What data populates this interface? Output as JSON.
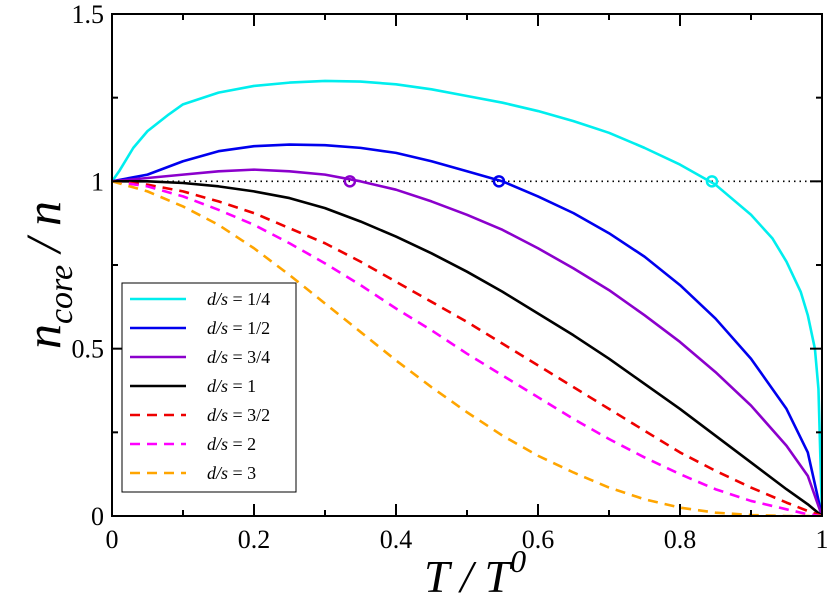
{
  "chart_data": {
    "type": "line",
    "title": "",
    "xlabel": {
      "base": "T / T",
      "sup": "0"
    },
    "ylabel": {
      "base": "n",
      "sub": "core",
      "tail": " / n"
    },
    "xlim": [
      0,
      1
    ],
    "ylim": [
      0,
      1.5
    ],
    "x_ticks": [
      0,
      0.2,
      0.4,
      0.6,
      0.8,
      1
    ],
    "x_tick_labels": [
      "0",
      "0.2",
      "0.4",
      "0.6",
      "0.8",
      "1"
    ],
    "y_ticks": [
      0,
      0.5,
      1,
      1.5
    ],
    "y_tick_labels": [
      "0",
      "0.5",
      "1",
      "1.5"
    ],
    "grid": false,
    "legend_position": "bottom-left",
    "reference_line": {
      "y": 1,
      "style": "dotted",
      "color": "#000000"
    },
    "x": [
      0,
      0.05,
      0.1,
      0.15,
      0.2,
      0.25,
      0.3,
      0.35,
      0.4,
      0.45,
      0.5,
      0.55,
      0.6,
      0.65,
      0.7,
      0.75,
      0.8,
      0.85,
      0.9,
      0.95,
      0.98,
      1.0
    ],
    "series": [
      {
        "name": "d/s = 1/4",
        "var": "d/s",
        "value": "1/4",
        "color": "#00eeee",
        "dash": "solid",
        "points": [
          [
            0,
            1.0
          ],
          [
            0.01,
            1.03
          ],
          [
            0.03,
            1.1
          ],
          [
            0.05,
            1.15
          ],
          [
            0.08,
            1.2
          ],
          [
            0.1,
            1.23
          ],
          [
            0.15,
            1.265
          ],
          [
            0.2,
            1.285
          ],
          [
            0.25,
            1.295
          ],
          [
            0.3,
            1.3
          ],
          [
            0.35,
            1.298
          ],
          [
            0.4,
            1.29
          ],
          [
            0.45,
            1.275
          ],
          [
            0.5,
            1.255
          ],
          [
            0.55,
            1.235
          ],
          [
            0.6,
            1.21
          ],
          [
            0.65,
            1.18
          ],
          [
            0.7,
            1.145
          ],
          [
            0.75,
            1.1
          ],
          [
            0.8,
            1.05
          ],
          [
            0.85,
            0.99
          ],
          [
            0.9,
            0.9
          ],
          [
            0.93,
            0.83
          ],
          [
            0.95,
            0.76
          ],
          [
            0.97,
            0.67
          ],
          [
            0.98,
            0.6
          ],
          [
            0.99,
            0.5
          ],
          [
            0.995,
            0.38
          ],
          [
            1.0,
            0.0
          ]
        ]
      },
      {
        "name": "d/s = 1/2",
        "var": "d/s",
        "value": "1/2",
        "color": "#0000ee",
        "dash": "solid",
        "points": [
          [
            0,
            1.0
          ],
          [
            0.05,
            1.02
          ],
          [
            0.1,
            1.06
          ],
          [
            0.15,
            1.09
          ],
          [
            0.2,
            1.105
          ],
          [
            0.25,
            1.11
          ],
          [
            0.3,
            1.108
          ],
          [
            0.35,
            1.1
          ],
          [
            0.4,
            1.085
          ],
          [
            0.45,
            1.06
          ],
          [
            0.5,
            1.03
          ],
          [
            0.55,
            1.0
          ],
          [
            0.6,
            0.955
          ],
          [
            0.65,
            0.905
          ],
          [
            0.7,
            0.845
          ],
          [
            0.75,
            0.775
          ],
          [
            0.8,
            0.69
          ],
          [
            0.85,
            0.59
          ],
          [
            0.9,
            0.47
          ],
          [
            0.95,
            0.32
          ],
          [
            0.98,
            0.19
          ],
          [
            1.0,
            0.0
          ]
        ]
      },
      {
        "name": "d/s = 3/4",
        "var": "d/s",
        "value": "3/4",
        "color": "#8b00cc",
        "dash": "solid",
        "points": [
          [
            0,
            1.0
          ],
          [
            0.05,
            1.01
          ],
          [
            0.1,
            1.02
          ],
          [
            0.15,
            1.03
          ],
          [
            0.2,
            1.035
          ],
          [
            0.25,
            1.03
          ],
          [
            0.3,
            1.02
          ],
          [
            0.35,
            1.0
          ],
          [
            0.4,
            0.975
          ],
          [
            0.45,
            0.94
          ],
          [
            0.5,
            0.9
          ],
          [
            0.55,
            0.855
          ],
          [
            0.6,
            0.8
          ],
          [
            0.65,
            0.74
          ],
          [
            0.7,
            0.675
          ],
          [
            0.75,
            0.6
          ],
          [
            0.8,
            0.52
          ],
          [
            0.85,
            0.43
          ],
          [
            0.9,
            0.33
          ],
          [
            0.95,
            0.21
          ],
          [
            0.98,
            0.12
          ],
          [
            1.0,
            0.0
          ]
        ]
      },
      {
        "name": "d/s = 1",
        "var": "d/s",
        "value": "1",
        "color": "#000000",
        "dash": "solid",
        "points": [
          [
            0,
            1.0
          ],
          [
            0.05,
            1.0
          ],
          [
            0.1,
            0.995
          ],
          [
            0.15,
            0.985
          ],
          [
            0.2,
            0.97
          ],
          [
            0.25,
            0.95
          ],
          [
            0.3,
            0.92
          ],
          [
            0.35,
            0.88
          ],
          [
            0.4,
            0.835
          ],
          [
            0.45,
            0.785
          ],
          [
            0.5,
            0.73
          ],
          [
            0.55,
            0.67
          ],
          [
            0.6,
            0.605
          ],
          [
            0.65,
            0.54
          ],
          [
            0.7,
            0.47
          ],
          [
            0.75,
            0.395
          ],
          [
            0.8,
            0.32
          ],
          [
            0.85,
            0.24
          ],
          [
            0.9,
            0.16
          ],
          [
            0.95,
            0.08
          ],
          [
            0.98,
            0.035
          ],
          [
            1.0,
            0.0
          ]
        ]
      },
      {
        "name": "d/s = 3/2",
        "var": "d/s",
        "value": "3/2",
        "color": "#ee0000",
        "dash": "dashed",
        "points": [
          [
            0,
            1.0
          ],
          [
            0.05,
            0.99
          ],
          [
            0.1,
            0.97
          ],
          [
            0.15,
            0.94
          ],
          [
            0.2,
            0.905
          ],
          [
            0.25,
            0.86
          ],
          [
            0.3,
            0.815
          ],
          [
            0.35,
            0.76
          ],
          [
            0.4,
            0.7
          ],
          [
            0.45,
            0.64
          ],
          [
            0.5,
            0.58
          ],
          [
            0.55,
            0.515
          ],
          [
            0.6,
            0.45
          ],
          [
            0.65,
            0.385
          ],
          [
            0.7,
            0.32
          ],
          [
            0.75,
            0.255
          ],
          [
            0.8,
            0.19
          ],
          [
            0.85,
            0.135
          ],
          [
            0.9,
            0.085
          ],
          [
            0.95,
            0.04
          ],
          [
            0.98,
            0.015
          ],
          [
            1.0,
            0.0
          ]
        ]
      },
      {
        "name": "d/s = 2",
        "var": "d/s",
        "value": "2",
        "color": "#ff00ff",
        "dash": "dashed",
        "points": [
          [
            0,
            1.0
          ],
          [
            0.05,
            0.985
          ],
          [
            0.1,
            0.955
          ],
          [
            0.15,
            0.915
          ],
          [
            0.2,
            0.87
          ],
          [
            0.25,
            0.815
          ],
          [
            0.3,
            0.755
          ],
          [
            0.35,
            0.69
          ],
          [
            0.4,
            0.62
          ],
          [
            0.45,
            0.555
          ],
          [
            0.5,
            0.485
          ],
          [
            0.55,
            0.42
          ],
          [
            0.6,
            0.355
          ],
          [
            0.65,
            0.29
          ],
          [
            0.7,
            0.23
          ],
          [
            0.75,
            0.175
          ],
          [
            0.8,
            0.125
          ],
          [
            0.85,
            0.08
          ],
          [
            0.9,
            0.045
          ],
          [
            0.95,
            0.02
          ],
          [
            0.98,
            0.005
          ],
          [
            1.0,
            0.0
          ]
        ]
      },
      {
        "name": "d/s = 3",
        "var": "d/s",
        "value": "3",
        "color": "#ffa500",
        "dash": "dashed",
        "points": [
          [
            0,
            1.0
          ],
          [
            0.05,
            0.97
          ],
          [
            0.1,
            0.925
          ],
          [
            0.15,
            0.87
          ],
          [
            0.2,
            0.8
          ],
          [
            0.25,
            0.72
          ],
          [
            0.3,
            0.635
          ],
          [
            0.35,
            0.55
          ],
          [
            0.4,
            0.465
          ],
          [
            0.45,
            0.385
          ],
          [
            0.5,
            0.31
          ],
          [
            0.55,
            0.24
          ],
          [
            0.6,
            0.18
          ],
          [
            0.65,
            0.13
          ],
          [
            0.7,
            0.085
          ],
          [
            0.75,
            0.05
          ],
          [
            0.8,
            0.025
          ],
          [
            0.85,
            0.01
          ],
          [
            0.9,
            0.003
          ],
          [
            0.95,
            0.0
          ],
          [
            1.0,
            0.0
          ]
        ]
      }
    ],
    "markers": [
      {
        "x": 0.335,
        "y": 1.0,
        "color": "#8b00cc",
        "shape": "open-circle"
      },
      {
        "x": 0.545,
        "y": 1.0,
        "color": "#0000ee",
        "shape": "open-circle"
      },
      {
        "x": 0.845,
        "y": 1.0,
        "color": "#00eeee",
        "shape": "open-circle"
      }
    ]
  }
}
